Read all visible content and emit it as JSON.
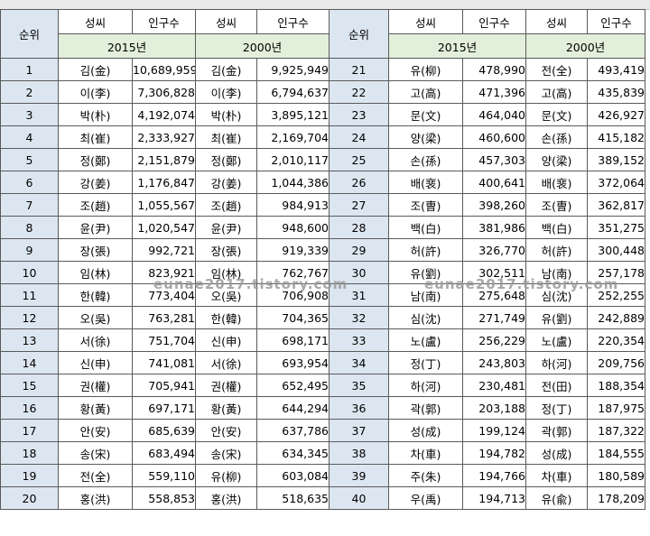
{
  "headers": {
    "rank": "순위",
    "surname": "성씨",
    "population": "인구수",
    "year_2015": "2015년",
    "year_2000": "2000년"
  },
  "watermark": "eunae2017.tistory.com",
  "left_rows": [
    {
      "rank": "1",
      "n15": "김(金)",
      "p15": "10,689,959",
      "n00": "김(金)",
      "p00": "9,925,949"
    },
    {
      "rank": "2",
      "n15": "이(李)",
      "p15": "7,306,828",
      "n00": "이(李)",
      "p00": "6,794,637"
    },
    {
      "rank": "3",
      "n15": "박(朴)",
      "p15": "4,192,074",
      "n00": "박(朴)",
      "p00": "3,895,121"
    },
    {
      "rank": "4",
      "n15": "최(崔)",
      "p15": "2,333,927",
      "n00": "최(崔)",
      "p00": "2,169,704"
    },
    {
      "rank": "5",
      "n15": "정(鄭)",
      "p15": "2,151,879",
      "n00": "정(鄭)",
      "p00": "2,010,117"
    },
    {
      "rank": "6",
      "n15": "강(姜)",
      "p15": "1,176,847",
      "n00": "강(姜)",
      "p00": "1,044,386"
    },
    {
      "rank": "7",
      "n15": "조(趙)",
      "p15": "1,055,567",
      "n00": "조(趙)",
      "p00": "984,913"
    },
    {
      "rank": "8",
      "n15": "윤(尹)",
      "p15": "1,020,547",
      "n00": "윤(尹)",
      "p00": "948,600"
    },
    {
      "rank": "9",
      "n15": "장(張)",
      "p15": "992,721",
      "n00": "장(張)",
      "p00": "919,339"
    },
    {
      "rank": "10",
      "n15": "임(林)",
      "p15": "823,921",
      "n00": "임(林)",
      "p00": "762,767"
    },
    {
      "rank": "11",
      "n15": "한(韓)",
      "p15": "773,404",
      "n00": "오(吳)",
      "p00": "706,908"
    },
    {
      "rank": "12",
      "n15": "오(吳)",
      "p15": "763,281",
      "n00": "한(韓)",
      "p00": "704,365"
    },
    {
      "rank": "13",
      "n15": "서(徐)",
      "p15": "751,704",
      "n00": "신(申)",
      "p00": "698,171"
    },
    {
      "rank": "14",
      "n15": "신(申)",
      "p15": "741,081",
      "n00": "서(徐)",
      "p00": "693,954"
    },
    {
      "rank": "15",
      "n15": "권(權)",
      "p15": "705,941",
      "n00": "권(權)",
      "p00": "652,495"
    },
    {
      "rank": "16",
      "n15": "황(黃)",
      "p15": "697,171",
      "n00": "황(黃)",
      "p00": "644,294"
    },
    {
      "rank": "17",
      "n15": "안(安)",
      "p15": "685,639",
      "n00": "안(安)",
      "p00": "637,786"
    },
    {
      "rank": "18",
      "n15": "송(宋)",
      "p15": "683,494",
      "n00": "송(宋)",
      "p00": "634,345"
    },
    {
      "rank": "19",
      "n15": "전(全)",
      "p15": "559,110",
      "n00": "유(柳)",
      "p00": "603,084"
    },
    {
      "rank": "20",
      "n15": "홍(洪)",
      "p15": "558,853",
      "n00": "홍(洪)",
      "p00": "518,635"
    }
  ],
  "right_rows": [
    {
      "rank": "21",
      "n15": "유(柳)",
      "p15": "478,990",
      "n00": "전(全)",
      "p00": "493,419"
    },
    {
      "rank": "22",
      "n15": "고(高)",
      "p15": "471,396",
      "n00": "고(高)",
      "p00": "435,839"
    },
    {
      "rank": "23",
      "n15": "문(文)",
      "p15": "464,040",
      "n00": "문(文)",
      "p00": "426,927"
    },
    {
      "rank": "24",
      "n15": "양(梁)",
      "p15": "460,600",
      "n00": "손(孫)",
      "p00": "415,182"
    },
    {
      "rank": "25",
      "n15": "손(孫)",
      "p15": "457,303",
      "n00": "양(梁)",
      "p00": "389,152"
    },
    {
      "rank": "26",
      "n15": "배(裵)",
      "p15": "400,641",
      "n00": "배(裵)",
      "p00": "372,064"
    },
    {
      "rank": "27",
      "n15": "조(曺)",
      "p15": "398,260",
      "n00": "조(曺)",
      "p00": "362,817"
    },
    {
      "rank": "28",
      "n15": "백(白)",
      "p15": "381,986",
      "n00": "백(白)",
      "p00": "351,275"
    },
    {
      "rank": "29",
      "n15": "허(許)",
      "p15": "326,770",
      "n00": "허(許)",
      "p00": "300,448"
    },
    {
      "rank": "30",
      "n15": "유(劉)",
      "p15": "302,511",
      "n00": "남(南)",
      "p00": "257,178"
    },
    {
      "rank": "31",
      "n15": "남(南)",
      "p15": "275,648",
      "n00": "심(沈)",
      "p00": "252,255"
    },
    {
      "rank": "32",
      "n15": "심(沈)",
      "p15": "271,749",
      "n00": "유(劉)",
      "p00": "242,889"
    },
    {
      "rank": "33",
      "n15": "노(盧)",
      "p15": "256,229",
      "n00": "노(盧)",
      "p00": "220,354"
    },
    {
      "rank": "34",
      "n15": "정(丁)",
      "p15": "243,803",
      "n00": "하(河)",
      "p00": "209,756"
    },
    {
      "rank": "35",
      "n15": "하(河)",
      "p15": "230,481",
      "n00": "전(田)",
      "p00": "188,354"
    },
    {
      "rank": "36",
      "n15": "곽(郭)",
      "p15": "203,188",
      "n00": "정(丁)",
      "p00": "187,975"
    },
    {
      "rank": "37",
      "n15": "성(成)",
      "p15": "199,124",
      "n00": "곽(郭)",
      "p00": "187,322"
    },
    {
      "rank": "38",
      "n15": "차(車)",
      "p15": "194,782",
      "n00": "성(成)",
      "p00": "184,555"
    },
    {
      "rank": "39",
      "n15": "주(朱)",
      "p15": "194,766",
      "n00": "차(車)",
      "p00": "180,589"
    },
    {
      "rank": "40",
      "n15": "우(禹)",
      "p15": "194,713",
      "n00": "유(兪)",
      "p00": "178,209"
    }
  ]
}
